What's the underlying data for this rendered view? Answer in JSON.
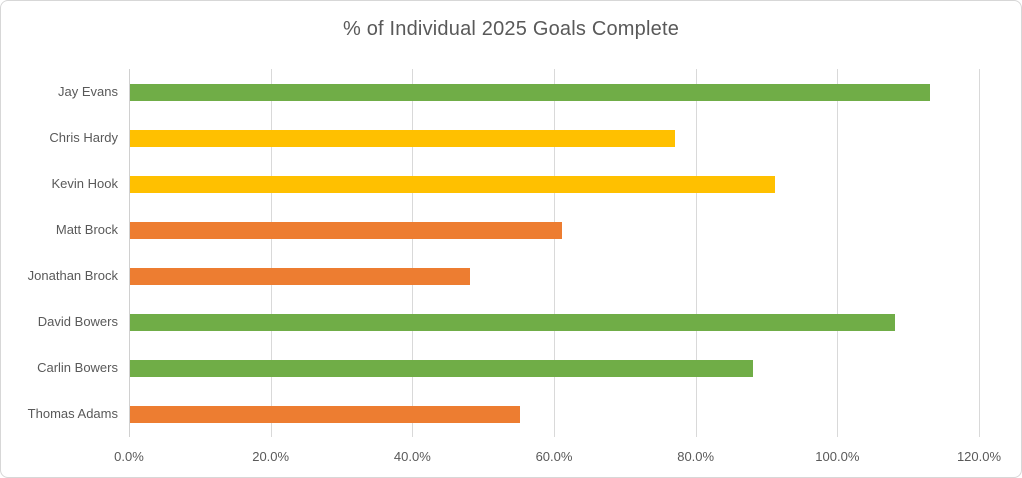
{
  "chart_data": {
    "type": "bar",
    "orientation": "horizontal",
    "title": "% of Individual 2025 Goals Complete",
    "categories": [
      "Jay Evans",
      "Chris Hardy",
      "Kevin Hook",
      "Matt Brock",
      "Jonathan Brock",
      "David Bowers",
      "Carlin Bowers",
      "Thomas Adams"
    ],
    "values": [
      113,
      77,
      91,
      61,
      48,
      108,
      88,
      55
    ],
    "unit": "%",
    "bar_colors": [
      "#70AD47",
      "#FFC000",
      "#FFC000",
      "#ED7D31",
      "#ED7D31",
      "#70AD47",
      "#70AD47",
      "#ED7D31"
    ],
    "x_ticks": [
      "0.0%",
      "20.0%",
      "40.0%",
      "60.0%",
      "80.0%",
      "100.0%",
      "120.0%"
    ],
    "x_tick_values": [
      0,
      20,
      40,
      60,
      80,
      100,
      120
    ],
    "xlim": [
      0,
      120
    ],
    "xlabel": "",
    "ylabel": "",
    "grid": "vertical",
    "legend": "none",
    "palette": {
      "green": "#70AD47",
      "yellow": "#FFC000",
      "orange": "#ED7D31"
    },
    "text_color": "#595959",
    "gridline_color": "#D9D9D9"
  }
}
